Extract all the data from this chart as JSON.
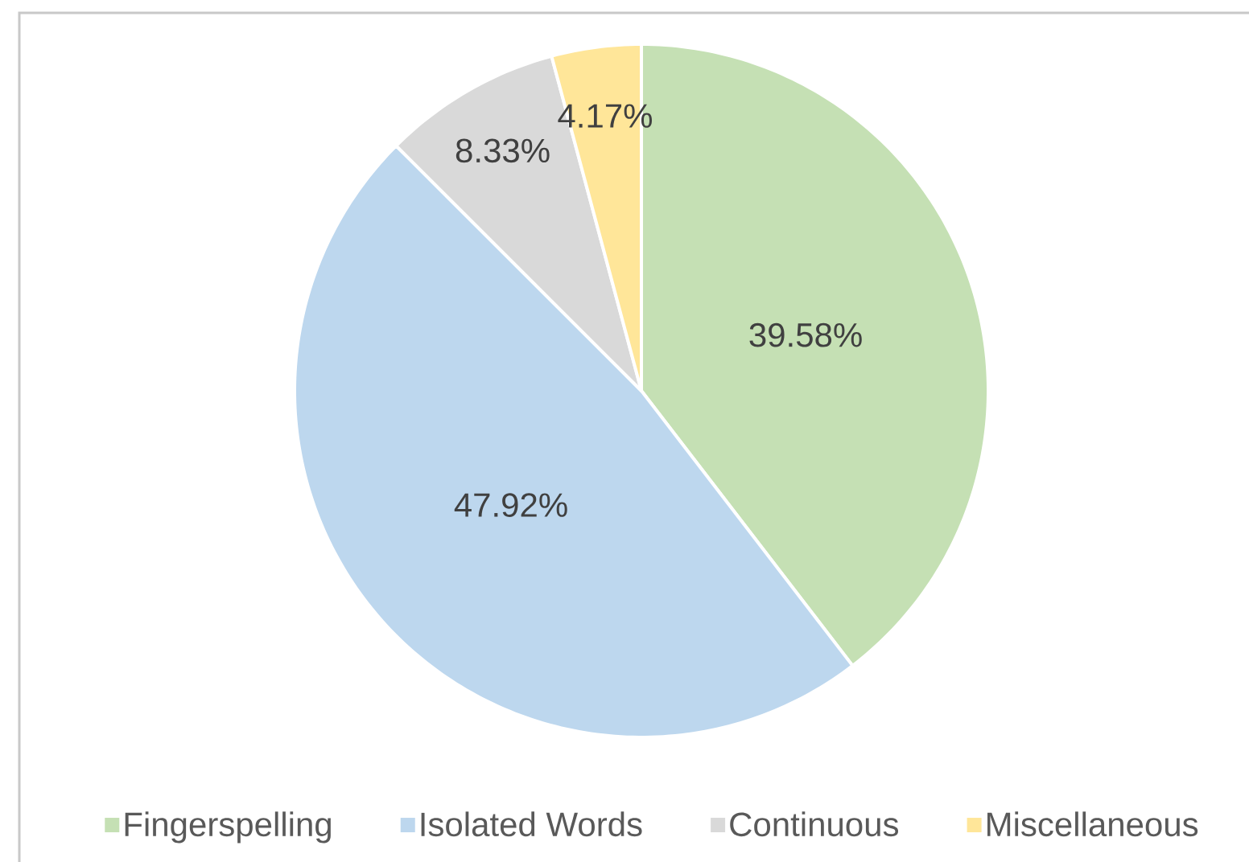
{
  "chart_data": {
    "type": "pie",
    "categories": [
      "Fingerspelling",
      "Isolated Words",
      "Continuous",
      "Miscellaneous"
    ],
    "values": [
      39.58,
      47.92,
      8.33,
      4.17
    ],
    "colors": [
      "#c5e0b4",
      "#bdd7ee",
      "#d9d9d9",
      "#ffe699"
    ],
    "value_labels": [
      "39.58%",
      "47.92%",
      "8.33%",
      "4.17%"
    ],
    "legend": "bottom"
  }
}
